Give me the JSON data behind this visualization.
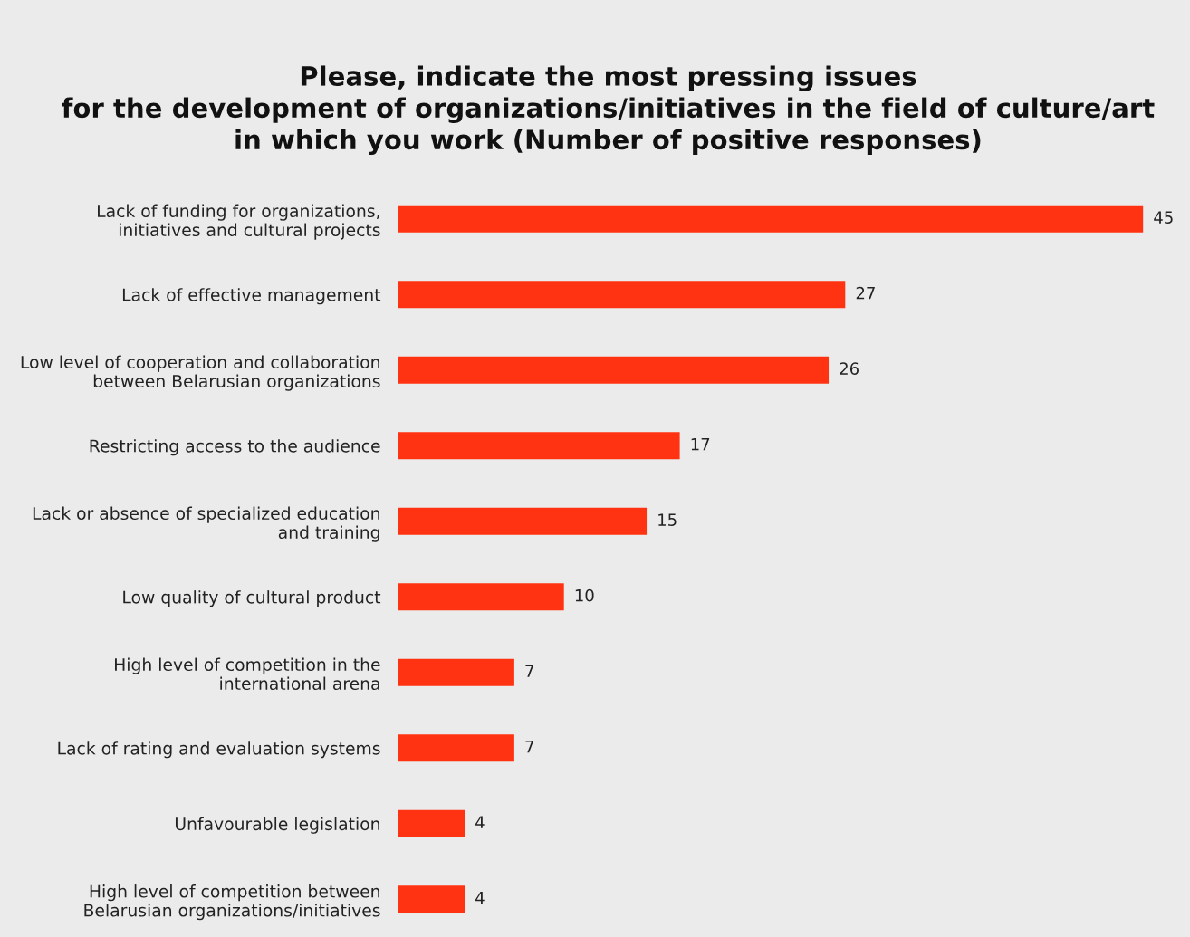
{
  "chart_data": {
    "type": "bar",
    "orientation": "horizontal",
    "title": "Please, indicate the most pressing issues\nfor the development of organizations/initiatives in the field of culture/art\nin which you work (Number of positive responses)",
    "categories": [
      "Lack of funding for organizations,\ninitiatives and cultural projects",
      "Lack of effective management",
      "Low level of cooperation and collaboration\nbetween Belarusian organizations",
      "Restricting access to the audience",
      "Lack or absence of specialized education\nand training",
      "Low quality of cultural product",
      "High level of competition in the\ninternational arena",
      "Lack of rating and evaluation systems",
      "Unfavourable legislation",
      "High level of competition between\nBelarusian organizations/initiatives"
    ],
    "values": [
      45,
      27,
      26,
      17,
      15,
      10,
      7,
      7,
      4,
      4
    ],
    "color": "#ff3311",
    "data_labels": true,
    "grid": false,
    "legend": false
  }
}
